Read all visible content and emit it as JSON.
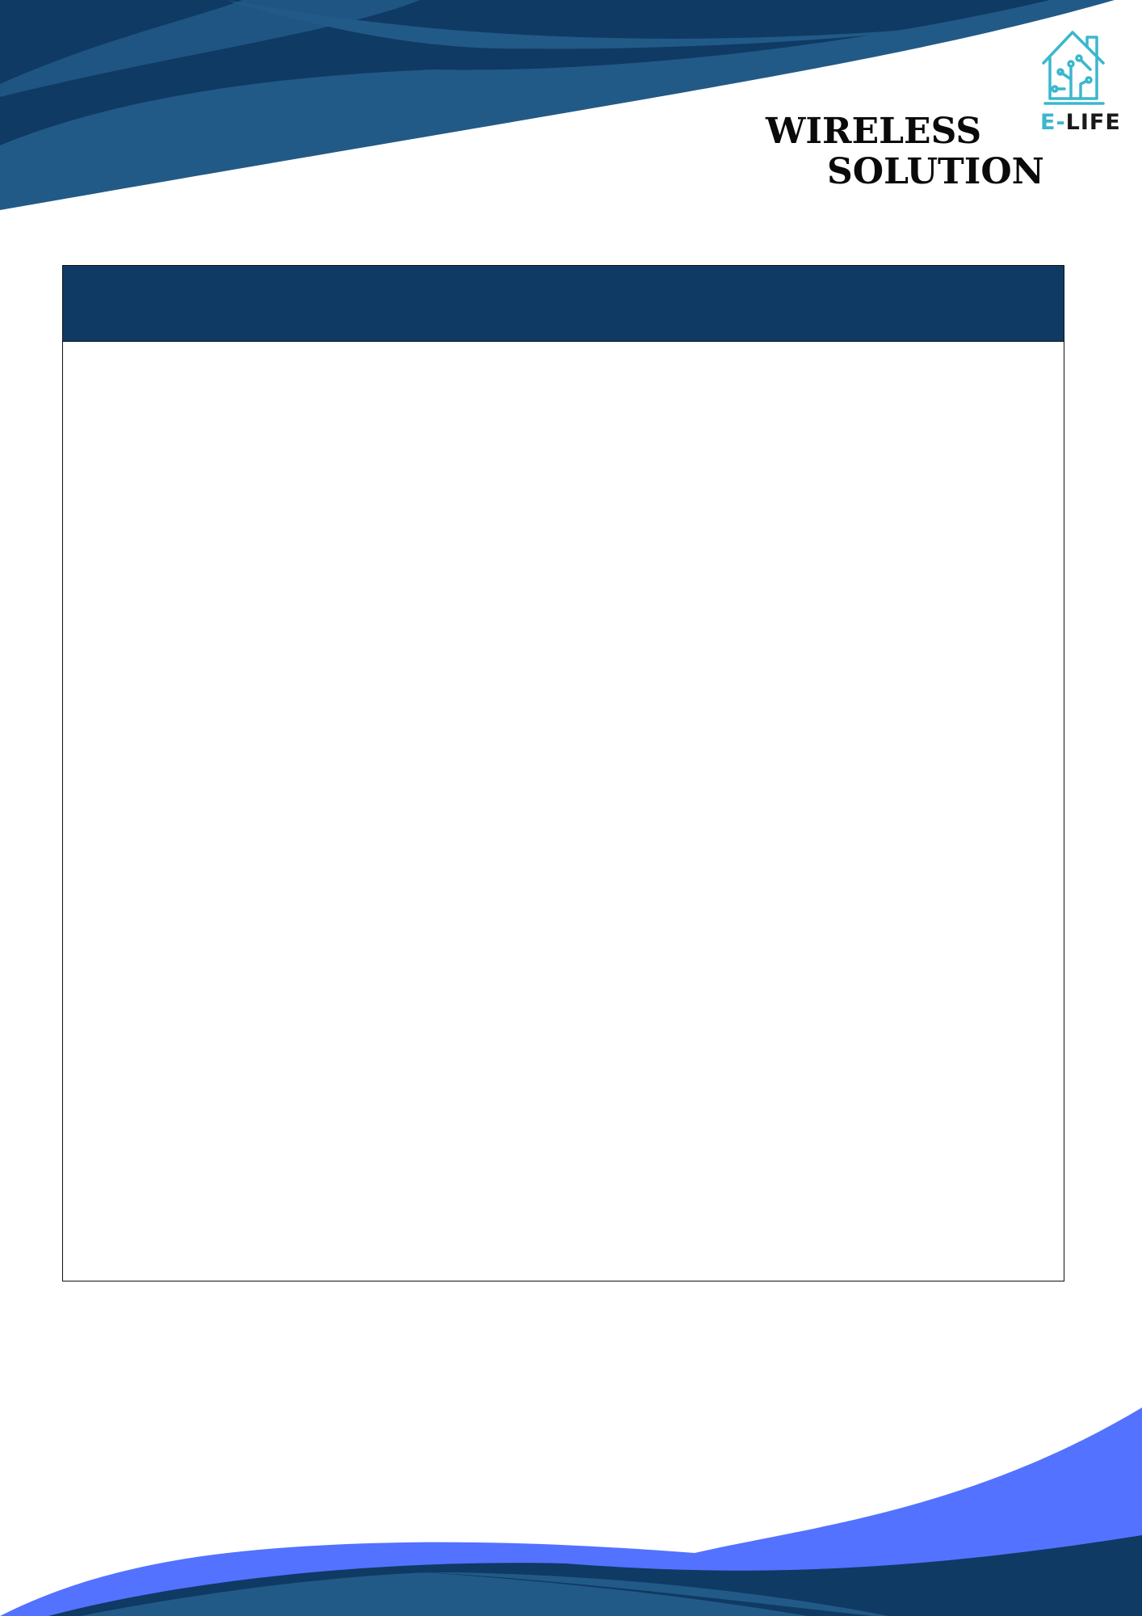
{
  "header": {
    "logo": {
      "icon": "smart-home-icon",
      "brand_prefix": "E-",
      "brand_name": "LIFE",
      "accent_color": "#3bb7cc"
    },
    "title_line1": "WIRELESS",
    "title_line2": "SOLUTION"
  },
  "content_box": {
    "header_color": "#0f3a64",
    "heading": "",
    "body": ""
  },
  "colors": {
    "navy": "#0f3a64",
    "steel_blue": "#225a87",
    "bright_blue": "#5372ff"
  }
}
